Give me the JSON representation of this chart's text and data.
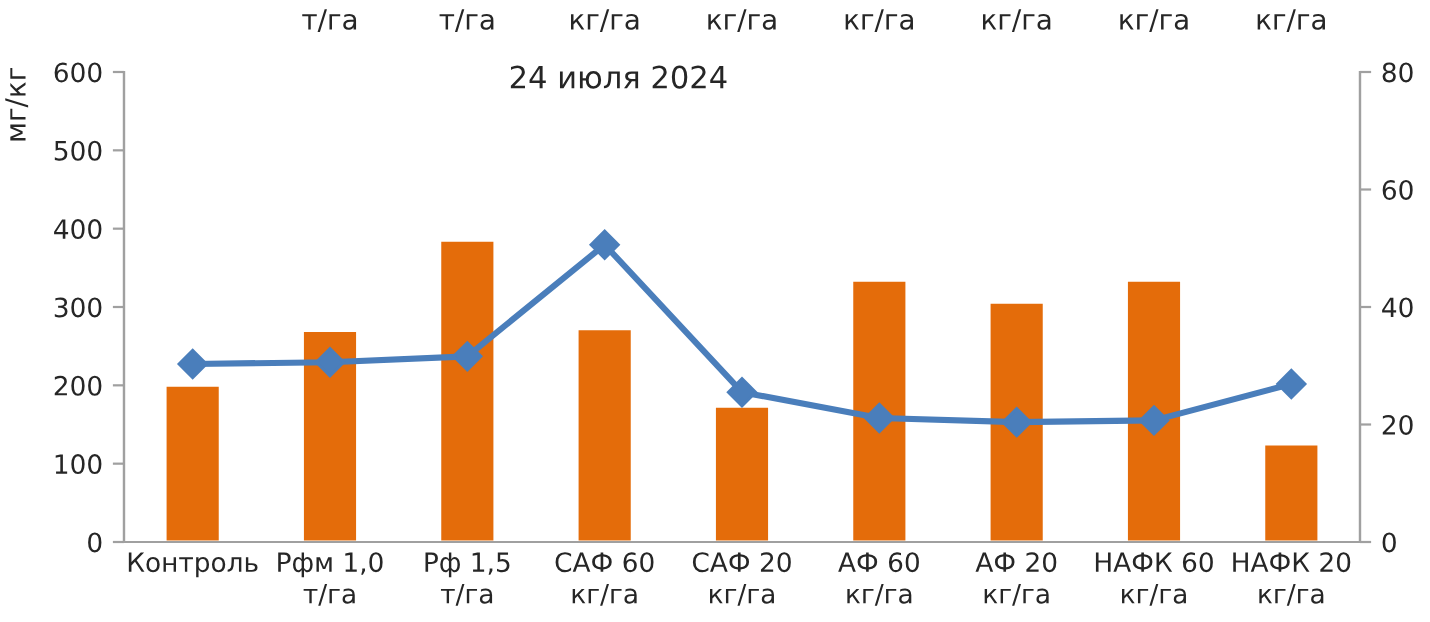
{
  "chart_data": {
    "type": "bar",
    "title": "24 июля 2024",
    "ylabel": "мг/кг",
    "categories": [
      "Контроль",
      "Рфм 1,0\nт/га",
      "Рф 1,5\nт/га",
      "САФ 60\nкг/га",
      "САФ 20\nкг/га",
      "АФ 60\nкг/га",
      "АФ 20\nкг/га",
      "НАФК 60\nкг/га",
      "НАФК 20\nкг/га"
    ],
    "series": [
      {
        "color": "#e46c0a",
        "values": [
          200,
          270,
          385,
          272,
          173,
          334,
          306,
          334,
          125
        ]
      },
      {
        "type": "line",
        "axis": "y2",
        "color": "#4a7ebb",
        "marker": "diamond",
        "values": [
          30.3,
          30.6,
          31.6,
          50.6,
          25.5,
          21.1,
          20.4,
          20.7,
          26.9
        ]
      }
    ],
    "ylim": [
      0,
      600
    ],
    "yticks": [
      0,
      100,
      200,
      300,
      400,
      500,
      600
    ],
    "y2lim": [
      0,
      80
    ],
    "y2ticks": [
      0,
      20,
      40,
      60,
      80
    ],
    "grid": false,
    "legend": false,
    "annotations": [
      "т/га",
      "т/га",
      "кг/га",
      "кг/га",
      "кг/га",
      "кг/га",
      "кг/га",
      "кг/га"
    ]
  }
}
